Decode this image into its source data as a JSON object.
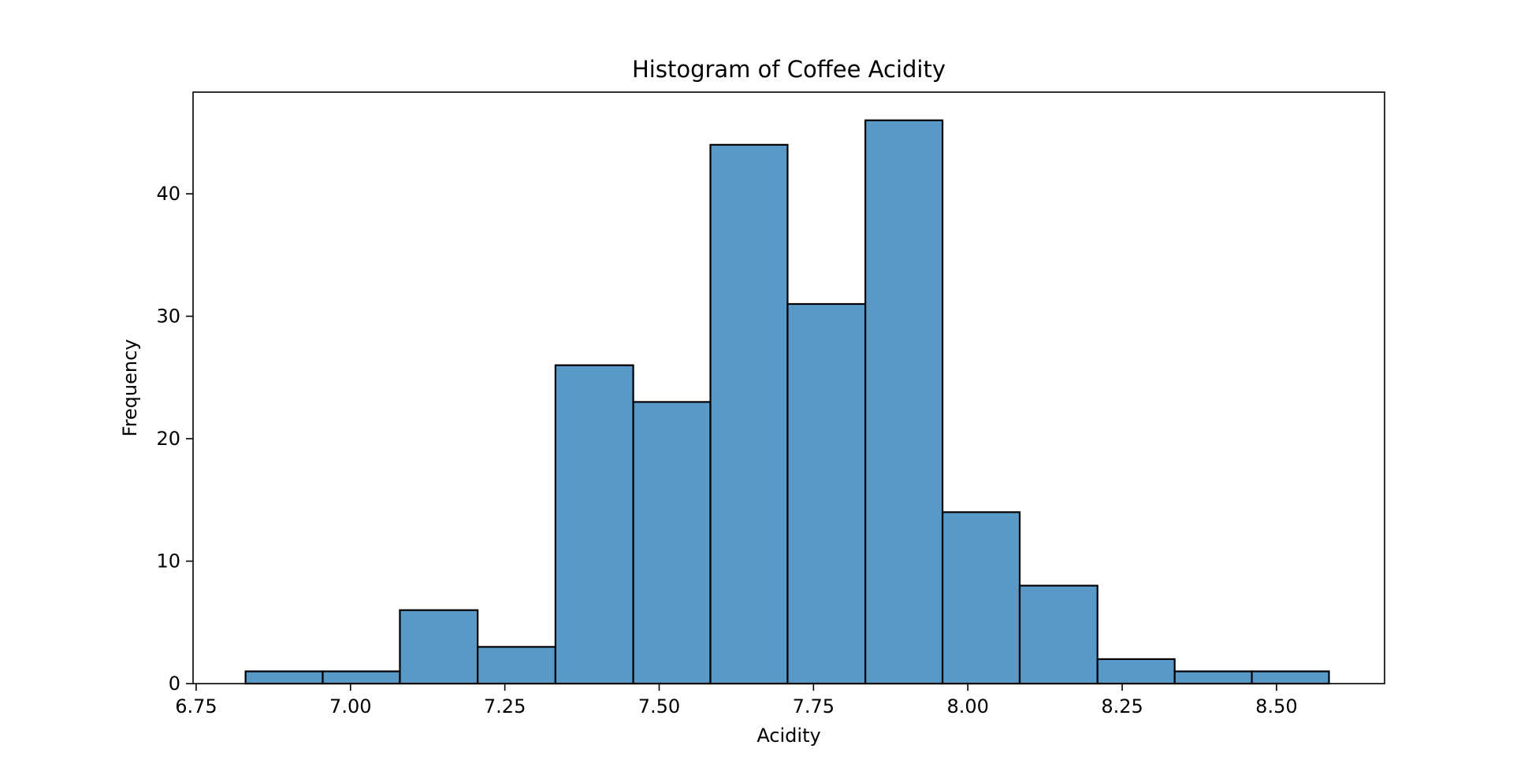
{
  "chart_data": {
    "type": "bar",
    "subtype": "histogram",
    "title": "Histogram of Coffee Acidity",
    "xlabel": "Acidity",
    "ylabel": "Frequency",
    "xlim": [
      6.745,
      8.675
    ],
    "ylim": [
      0,
      48.3
    ],
    "xticks": [
      6.75,
      7.0,
      7.25,
      7.5,
      7.75,
      8.0,
      8.25,
      8.5
    ],
    "xtick_labels": [
      "6.75",
      "7.00",
      "7.25",
      "7.50",
      "7.75",
      "8.00",
      "8.25",
      "8.50"
    ],
    "yticks": [
      0,
      10,
      20,
      30,
      40
    ],
    "ytick_labels": [
      "0",
      "10",
      "20",
      "30",
      "40"
    ],
    "bin_edges": [
      6.83,
      6.955,
      7.08,
      7.206,
      7.332,
      7.458,
      7.583,
      7.708,
      7.834,
      7.959,
      8.084,
      8.21,
      8.335,
      8.46,
      8.585
    ],
    "values": [
      1,
      1,
      6,
      3,
      26,
      23,
      44,
      31,
      46,
      14,
      8,
      2,
      1,
      1
    ],
    "bar_color": "#5899c8",
    "edge_color": "#000000",
    "grid": false,
    "legend": "none"
  }
}
